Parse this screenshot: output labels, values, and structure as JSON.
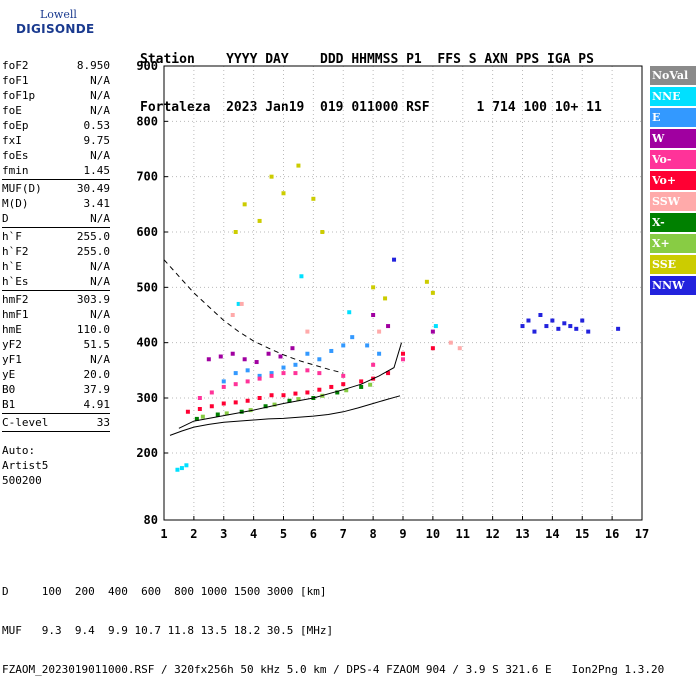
{
  "logo": {
    "line1": "Lowell",
    "line2": "DIGISONDE"
  },
  "header": {
    "line1": "Station    YYYY DAY    DDD HHMMSS P1  FFS S AXN PPS IGA PS",
    "line2": "Fortaleza  2023 Jan19  019 011000 RSF      1 714 100 10+ 11"
  },
  "params": {
    "group1": [
      [
        "foF2",
        "8.950"
      ],
      [
        "foF1",
        "N/A"
      ],
      [
        "foF1p",
        "N/A"
      ],
      [
        "foE",
        "N/A"
      ],
      [
        "foEp",
        "0.53"
      ],
      [
        "fxI",
        "9.75"
      ],
      [
        "foEs",
        "N/A"
      ],
      [
        "fmin",
        "1.45"
      ]
    ],
    "group2": [
      [
        "MUF(D)",
        "30.49"
      ],
      [
        "M(D)",
        "3.41"
      ],
      [
        "D",
        "N/A"
      ]
    ],
    "group3": [
      [
        "h`F",
        "255.0"
      ],
      [
        "h`F2",
        "255.0"
      ],
      [
        "h`E",
        "N/A"
      ],
      [
        "h`Es",
        "N/A"
      ]
    ],
    "group4": [
      [
        "hmF2",
        "303.9"
      ],
      [
        "hmF1",
        "N/A"
      ],
      [
        "hmE",
        "110.0"
      ],
      [
        "yF2",
        "51.5"
      ],
      [
        "yF1",
        "N/A"
      ],
      [
        "yE",
        "20.0"
      ],
      [
        "B0",
        "37.9"
      ],
      [
        "B1",
        "4.91"
      ]
    ],
    "group5": [
      [
        "C-level",
        "33"
      ]
    ],
    "auto": [
      "Auto:",
      "Artist5",
      "500200"
    ]
  },
  "legend": [
    {
      "label": "NoVal",
      "color": "#8a8a8a"
    },
    {
      "label": "NNE",
      "color": "#00e0ff"
    },
    {
      "label": "E",
      "color": "#3399ff"
    },
    {
      "label": "W",
      "color": "#a000a0"
    },
    {
      "label": "Vo-",
      "color": "#ff3399"
    },
    {
      "label": "Vo+",
      "color": "#ff0033"
    },
    {
      "label": "SSW",
      "color": "#ffaaaa"
    },
    {
      "label": "X-",
      "color": "#008000"
    },
    {
      "label": "X+",
      "color": "#88cc44"
    },
    {
      "label": "SSE",
      "color": "#cccc00"
    },
    {
      "label": "NNW",
      "color": "#2222dd"
    }
  ],
  "footer": {
    "line1": "D     100  200  400  600  800 1000 1500 3000 [km]",
    "line2": "MUF   9.3  9.4  9.9 10.7 11.8 13.5 18.2 30.5 [MHz]",
    "line3": "FZAOM_2023019011000.RSF / 320fx256h 50 kHz 5.0 km / DPS-4 FZAOM 904 / 3.9 S 321.6 E   Ion2Png 1.3.20"
  },
  "chart_data": {
    "type": "scatter",
    "title": "",
    "xlabel": "",
    "ylabel": "",
    "xlim": [
      1,
      17
    ],
    "ylim": [
      80,
      900
    ],
    "xticks": [
      1,
      2,
      3,
      4,
      5,
      6,
      7,
      8,
      9,
      10,
      11,
      12,
      13,
      14,
      15,
      16,
      17
    ],
    "yticks": [
      80,
      200,
      300,
      400,
      500,
      600,
      700,
      800,
      900
    ],
    "grid": "dotted",
    "legend_position": "right",
    "series": [
      {
        "name": "NNE",
        "color": "#00e0ff",
        "points": [
          [
            1.45,
            170
          ],
          [
            1.6,
            173
          ],
          [
            1.75,
            178
          ],
          [
            3.5,
            470
          ],
          [
            5.6,
            520
          ],
          [
            7.2,
            455
          ],
          [
            10.1,
            430
          ]
        ]
      },
      {
        "name": "E",
        "color": "#3399ff",
        "points": [
          [
            3.0,
            330
          ],
          [
            3.4,
            345
          ],
          [
            3.8,
            350
          ],
          [
            4.2,
            340
          ],
          [
            4.6,
            345
          ],
          [
            5.0,
            355
          ],
          [
            5.4,
            360
          ],
          [
            5.8,
            380
          ],
          [
            6.2,
            370
          ],
          [
            6.6,
            385
          ],
          [
            7.0,
            395
          ],
          [
            7.3,
            410
          ],
          [
            7.8,
            395
          ],
          [
            8.2,
            380
          ]
        ]
      },
      {
        "name": "W",
        "color": "#a000a0",
        "points": [
          [
            2.5,
            370
          ],
          [
            2.9,
            375
          ],
          [
            3.3,
            380
          ],
          [
            3.7,
            370
          ],
          [
            4.1,
            365
          ],
          [
            4.5,
            380
          ],
          [
            4.9,
            375
          ],
          [
            5.3,
            390
          ],
          [
            8.0,
            450
          ],
          [
            8.5,
            430
          ],
          [
            10.0,
            420
          ]
        ]
      },
      {
        "name": "Vo-",
        "color": "#ff3399",
        "points": [
          [
            2.2,
            300
          ],
          [
            2.6,
            310
          ],
          [
            3.0,
            320
          ],
          [
            3.4,
            325
          ],
          [
            3.8,
            330
          ],
          [
            4.2,
            335
          ],
          [
            4.6,
            340
          ],
          [
            5.0,
            345
          ],
          [
            5.4,
            345
          ],
          [
            5.8,
            350
          ],
          [
            6.2,
            345
          ],
          [
            7.0,
            340
          ],
          [
            8.0,
            360
          ],
          [
            9.0,
            370
          ]
        ]
      },
      {
        "name": "Vo+",
        "color": "#ff0033",
        "points": [
          [
            1.8,
            275
          ],
          [
            2.2,
            280
          ],
          [
            2.6,
            285
          ],
          [
            3.0,
            290
          ],
          [
            3.4,
            292
          ],
          [
            3.8,
            295
          ],
          [
            4.2,
            300
          ],
          [
            4.6,
            305
          ],
          [
            5.0,
            305
          ],
          [
            5.4,
            308
          ],
          [
            5.8,
            310
          ],
          [
            6.2,
            315
          ],
          [
            6.6,
            320
          ],
          [
            7.0,
            325
          ],
          [
            7.6,
            330
          ],
          [
            8.0,
            335
          ],
          [
            8.5,
            345
          ],
          [
            9.0,
            380
          ],
          [
            10.0,
            390
          ]
        ]
      },
      {
        "name": "SSW",
        "color": "#ffaaaa",
        "points": [
          [
            3.3,
            450
          ],
          [
            3.6,
            470
          ],
          [
            5.8,
            420
          ],
          [
            8.2,
            420
          ],
          [
            10.6,
            400
          ],
          [
            10.9,
            390
          ]
        ]
      },
      {
        "name": "X-",
        "color": "#008000",
        "points": [
          [
            2.1,
            262
          ],
          [
            2.8,
            270
          ],
          [
            3.6,
            275
          ],
          [
            4.4,
            285
          ],
          [
            5.2,
            295
          ],
          [
            6.0,
            300
          ],
          [
            6.8,
            310
          ],
          [
            7.6,
            320
          ]
        ]
      },
      {
        "name": "X+",
        "color": "#88cc44",
        "points": [
          [
            2.3,
            266
          ],
          [
            3.1,
            272
          ],
          [
            3.9,
            278
          ],
          [
            4.7,
            288
          ],
          [
            5.5,
            298
          ],
          [
            6.3,
            304
          ],
          [
            7.1,
            314
          ],
          [
            7.9,
            324
          ]
        ]
      },
      {
        "name": "SSE",
        "color": "#cccc00",
        "points": [
          [
            3.4,
            600
          ],
          [
            3.7,
            650
          ],
          [
            4.2,
            620
          ],
          [
            4.6,
            700
          ],
          [
            5.0,
            670
          ],
          [
            5.5,
            720
          ],
          [
            6.0,
            660
          ],
          [
            6.3,
            600
          ],
          [
            8.0,
            500
          ],
          [
            8.4,
            480
          ],
          [
            9.8,
            510
          ],
          [
            10.0,
            490
          ]
        ]
      },
      {
        "name": "NNW",
        "color": "#2222dd",
        "points": [
          [
            8.7,
            550
          ],
          [
            13.0,
            430
          ],
          [
            13.2,
            440
          ],
          [
            13.4,
            420
          ],
          [
            13.6,
            450
          ],
          [
            13.8,
            430
          ],
          [
            14.0,
            440
          ],
          [
            14.2,
            425
          ],
          [
            14.4,
            435
          ],
          [
            14.6,
            430
          ],
          [
            14.8,
            425
          ],
          [
            15.0,
            440
          ],
          [
            15.2,
            420
          ],
          [
            16.2,
            425
          ]
        ]
      }
    ],
    "curves": [
      {
        "name": "profile",
        "style": "solid",
        "points": [
          [
            1.2,
            232
          ],
          [
            1.6,
            240
          ],
          [
            2.0,
            247
          ],
          [
            2.5,
            252
          ],
          [
            3.0,
            256
          ],
          [
            3.5,
            258
          ],
          [
            4.0,
            260
          ],
          [
            4.5,
            262
          ],
          [
            5.0,
            263
          ],
          [
            5.5,
            265
          ],
          [
            6.0,
            267
          ],
          [
            6.5,
            270
          ],
          [
            7.0,
            275
          ],
          [
            7.5,
            282
          ],
          [
            8.0,
            290
          ],
          [
            8.5,
            298
          ],
          [
            8.9,
            304
          ]
        ]
      },
      {
        "name": "trace",
        "style": "solid",
        "points": [
          [
            1.5,
            245
          ],
          [
            2.0,
            258
          ],
          [
            3.0,
            268
          ],
          [
            4.0,
            278
          ],
          [
            5.0,
            290
          ],
          [
            6.0,
            300
          ],
          [
            7.0,
            315
          ],
          [
            7.6,
            325
          ],
          [
            8.2,
            340
          ],
          [
            8.7,
            355
          ],
          [
            8.95,
            400
          ]
        ]
      },
      {
        "name": "x-trace",
        "style": "dashed",
        "points": [
          [
            1.0,
            550
          ],
          [
            1.5,
            520
          ],
          [
            2.0,
            490
          ],
          [
            2.5,
            465
          ],
          [
            3.0,
            440
          ],
          [
            3.5,
            420
          ],
          [
            4.0,
            403
          ],
          [
            4.5,
            390
          ],
          [
            5.0,
            378
          ],
          [
            5.5,
            368
          ],
          [
            6.0,
            360
          ],
          [
            6.5,
            352
          ],
          [
            7.0,
            345
          ]
        ]
      }
    ]
  }
}
